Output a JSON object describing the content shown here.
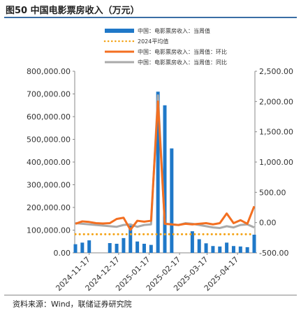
{
  "figure_title": "图50 中国电影票房收入（万元）",
  "source_note": "资料来源：Wind，联储证券研究院",
  "colors": {
    "bars": "#1f78c8",
    "avg_line": "#f4a316",
    "wow_line": "#f36f21",
    "yoy_line": "#aaaaaa",
    "title_rule": "#3a6ea5"
  },
  "chart_data": {
    "type": "bar",
    "legend_position": "top",
    "grid": false,
    "dates": [
      "2024-11-03",
      "2024-11-10",
      "2024-11-17",
      "2024-11-24",
      "2024-12-01",
      "2024-12-08",
      "2024-12-15",
      "2024-12-22",
      "2024-12-29",
      "2025-01-05",
      "2025-01-12",
      "2025-01-19",
      "2025-01-26",
      "2025-02-02",
      "2025-02-09",
      "2025-02-16",
      "2025-02-23",
      "2025-03-02",
      "2025-03-09",
      "2025-03-16",
      "2025-03-23",
      "2025-03-30",
      "2025-04-06",
      "2025-04-13",
      "2025-04-20",
      "2025-04-27",
      "2025-05-04"
    ],
    "x_tick_labels": [
      "2024-11-17",
      "2024-12-17",
      "2025-01-17",
      "2025-02-17",
      "2025-03-17",
      "2025-04-17"
    ],
    "y_left": {
      "lim": [
        0,
        800000
      ],
      "ticks": [
        "0.00",
        "100,000.00",
        "200,000.00",
        "300,000.00",
        "400,000.00",
        "500,000.00",
        "600,000.00",
        "700,000.00",
        "800,000.00"
      ]
    },
    "y_right": {
      "lim": [
        -500,
        2500
      ],
      "ticks": [
        "-500.00",
        "0.00",
        "500.00",
        "1,000.00",
        "1,500.00",
        "2,000.00",
        "2,500.00"
      ]
    },
    "series": [
      {
        "name": "中国：电影票房收入：当周值",
        "type": "bar",
        "axis": "left",
        "values": [
          38000,
          45000,
          55000,
          0,
          0,
          43000,
          40000,
          65000,
          120000,
          50000,
          40000,
          35000,
          710000,
          650000,
          460000,
          0,
          0,
          95000,
          60000,
          42000,
          30000,
          28000,
          45000,
          30000,
          28000,
          25000,
          80000
        ]
      },
      {
        "name": "2024平均值",
        "type": "dotted",
        "axis": "left",
        "values": [
          82000,
          82000,
          82000,
          82000,
          82000,
          82000,
          82000,
          82000,
          82000,
          82000,
          82000,
          82000,
          82000,
          82000,
          82000,
          82000,
          82000,
          82000,
          82000,
          82000,
          82000,
          82000,
          82000,
          82000,
          82000,
          82000,
          82000
        ]
      },
      {
        "name": "中国：电影票房收入：当周值：环比",
        "type": "line",
        "axis": "right",
        "values": [
          -20,
          20,
          10,
          -10,
          -15,
          -10,
          60,
          80,
          -120,
          30,
          15,
          30,
          2000,
          -20,
          -30,
          -40,
          -20,
          -30,
          -20,
          -10,
          -30,
          -10,
          150,
          -10,
          40,
          -20,
          270
        ]
      },
      {
        "name": "中国：电影票房收入：当周值：同比",
        "type": "line",
        "axis": "right",
        "values": [
          -10,
          -20,
          -30,
          -40,
          -50,
          -60,
          -70,
          -40,
          -30,
          -70,
          -40,
          -30,
          2100,
          -20,
          -30,
          -40,
          -10,
          -20,
          -40,
          -60,
          -80,
          -90,
          -60,
          -80,
          -40,
          -30,
          -80
        ]
      }
    ]
  }
}
